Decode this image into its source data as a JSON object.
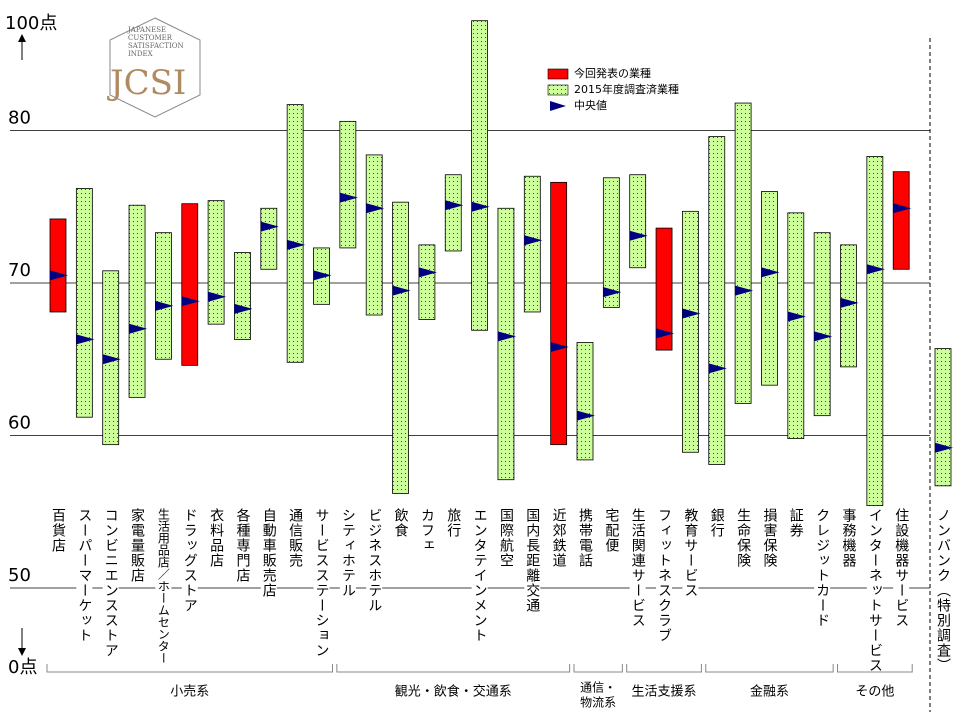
{
  "chart_data": {
    "type": "floating-bar",
    "categories": [
      "百貨店",
      "スーパーマーケット",
      "コンビニエンスストア",
      "家電量販店",
      "生活用品店／ホームセンター",
      "ドラッグストア",
      "衣料品店",
      "各種専門店",
      "自動車販売店",
      "通信販売",
      "サービスステーション",
      "シティホテル",
      "ビジネスホテル",
      "飲食",
      "カフェ",
      "旅行",
      "エンタテインメント",
      "国際航空",
      "国内長距離交通",
      "近郊鉄道",
      "携帯電話",
      "宅配便",
      "生活関連サービス",
      "フィットネスクラブ",
      "教育サービス",
      "銀行",
      "生命保険",
      "損害保険",
      "証券",
      "クレジットカード",
      "事務機器",
      "インターネットサービス",
      "住設機器サービス",
      "ノンバンク（特別調査）"
    ],
    "series": [
      {
        "name": "今回発表の業種",
        "color": "#ff0000",
        "low": [
          68.1,
          null,
          null,
          null,
          null,
          64.6,
          null,
          null,
          null,
          null,
          null,
          null,
          null,
          null,
          null,
          null,
          null,
          null,
          null,
          59.4,
          null,
          null,
          null,
          65.6,
          null,
          null,
          null,
          null,
          null,
          null,
          null,
          null,
          70.9,
          null
        ],
        "high": [
          74.2,
          null,
          null,
          null,
          null,
          75.2,
          null,
          null,
          null,
          null,
          null,
          null,
          null,
          null,
          null,
          null,
          null,
          null,
          null,
          76.6,
          null,
          null,
          null,
          73.6,
          null,
          null,
          null,
          null,
          null,
          null,
          null,
          null,
          77.3,
          null
        ]
      },
      {
        "name": "2015年度調査済業種",
        "color": "#ccff99",
        "low": [
          null,
          61.2,
          59.4,
          62.5,
          65.0,
          null,
          67.3,
          66.3,
          70.9,
          64.8,
          68.6,
          72.3,
          67.9,
          56.2,
          67.6,
          72.1,
          66.9,
          57.1,
          68.1,
          null,
          58.4,
          68.4,
          71.0,
          null,
          58.9,
          58.1,
          62.1,
          63.3,
          59.8,
          61.3,
          64.5,
          55.4,
          null,
          56.7
        ],
        "high": [
          null,
          76.2,
          70.8,
          75.1,
          73.3,
          null,
          75.4,
          72.0,
          74.9,
          81.7,
          72.3,
          80.6,
          78.4,
          75.3,
          72.5,
          77.1,
          87.2,
          74.9,
          77.0,
          null,
          66.1,
          76.9,
          77.1,
          null,
          74.7,
          79.6,
          81.8,
          76.0,
          74.6,
          73.3,
          72.5,
          78.3,
          null,
          65.7
        ]
      },
      {
        "name": "中央値",
        "color": "#000080",
        "values": [
          70.5,
          66.3,
          65.0,
          67.0,
          68.5,
          68.8,
          69.1,
          68.3,
          73.7,
          72.5,
          70.5,
          75.6,
          74.9,
          69.5,
          70.7,
          75.1,
          75.0,
          66.5,
          72.8,
          65.8,
          61.3,
          69.4,
          73.1,
          66.7,
          68.0,
          64.4,
          69.5,
          70.7,
          67.8,
          66.5,
          68.7,
          70.9,
          74.9,
          59.2
        ]
      }
    ],
    "groups": [
      {
        "label": "小売系",
        "from": 0,
        "to": 10
      },
      {
        "label": "観光・飲食・交通系",
        "from": 11,
        "to": 19
      },
      {
        "label_lines": [
          "通信・",
          "物流系"
        ],
        "from": 20,
        "to": 21
      },
      {
        "label": "生活支援系",
        "from": 22,
        "to": 24
      },
      {
        "label": "金融系",
        "from": 25,
        "to": 29
      },
      {
        "label": "その他",
        "from": 30,
        "to": 32
      }
    ],
    "ylim": [
      50,
      88
    ],
    "yticks": [
      50,
      60,
      70,
      80
    ],
    "grid": true,
    "annotations": [
      "100点",
      "0点"
    ],
    "logo": {
      "lines": [
        "JAPANESE",
        "CUSTOMER",
        "SATISFACTION",
        "INDEX"
      ],
      "mark": "JCSI"
    }
  }
}
